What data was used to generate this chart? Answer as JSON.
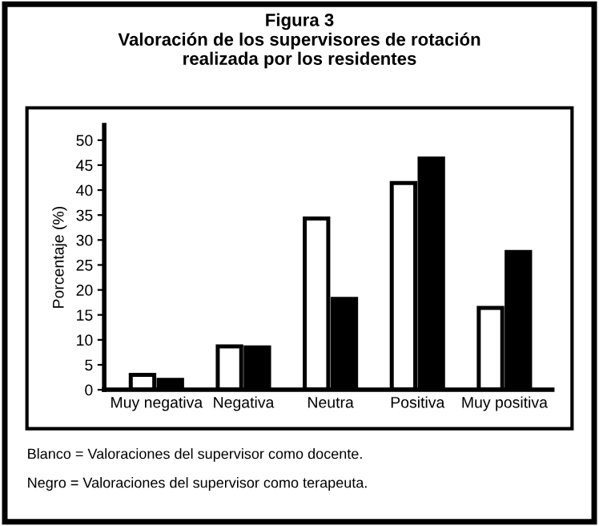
{
  "chart_data": {
    "type": "bar",
    "title": "Figura 3\nValoración de los supervisores de rotación\nrealizada por los residentes",
    "ylabel": "Porcentaje (%)",
    "categories": [
      "Muy negativa",
      "Negativa",
      "Neutra",
      "Positiva",
      "Muy positiva"
    ],
    "series": [
      {
        "color": "#ffffff",
        "values": [
          3,
          8.7,
          34.3,
          41.4,
          16.4
        ]
      },
      {
        "color": "#000000",
        "values": [
          2,
          8.5,
          18.2,
          46.3,
          27.6
        ]
      }
    ],
    "ylim": [
      0,
      53
    ],
    "yticks": [
      0,
      5,
      10,
      15,
      20,
      25,
      30,
      35,
      40,
      45,
      50
    ],
    "grid": false,
    "legend": false,
    "annotations": [
      "Blanco = Valoraciones del supervisor como docente.",
      "Negro = Valoraciones del supervisor como terapeuta."
    ]
  }
}
